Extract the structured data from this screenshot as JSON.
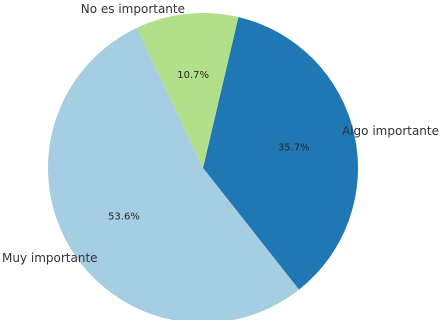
{
  "chart_data": {
    "type": "pie",
    "labels": [
      "Algo importante",
      "Muy importante",
      "No es importante"
    ],
    "values": [
      35.7,
      53.6,
      10.7
    ],
    "value_labels": [
      "35.7%",
      "53.6%",
      "10.7%"
    ],
    "colors": [
      "#1f78b4",
      "#a6cee3",
      "#b2df8a"
    ],
    "start_angle_deg": 76.8,
    "direction": "clockwise",
    "legend": "none"
  }
}
